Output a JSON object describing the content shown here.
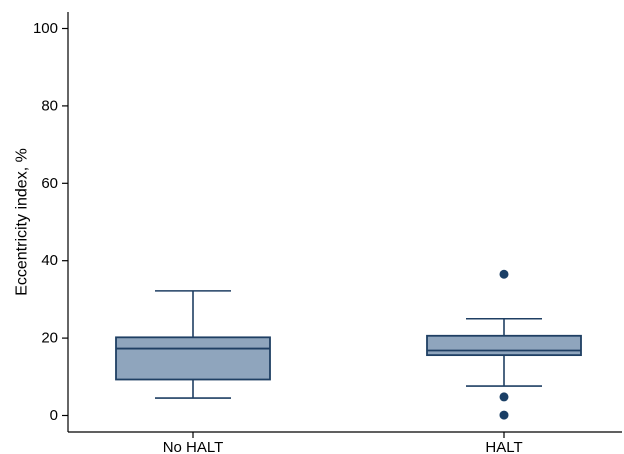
{
  "chart_data": {
    "type": "box",
    "title": "",
    "xlabel": "",
    "ylabel": "Eccentricity index, %",
    "ylim": [
      0,
      100
    ],
    "yticks": [
      0,
      20,
      40,
      60,
      80,
      100
    ],
    "grid": false,
    "legend": "none",
    "categories": [
      "No HALT",
      "HALT"
    ],
    "boxes": [
      {
        "name": "No HALT",
        "whisker_low": 4.5,
        "q1": 9.3,
        "median": 17.3,
        "q3": 20.2,
        "whisker_high": 32.2,
        "outliers": []
      },
      {
        "name": "HALT",
        "whisker_low": 7.6,
        "q1": 15.6,
        "median": 16.8,
        "q3": 20.6,
        "whisker_high": 25.0,
        "outliers": [
          36.5,
          4.8,
          0.1
        ]
      }
    ]
  },
  "colors": {
    "box_fill": "#8fa5bd",
    "box_stroke": "#1f3f63",
    "outlier": "#1a3f66",
    "axis": "#000000"
  }
}
